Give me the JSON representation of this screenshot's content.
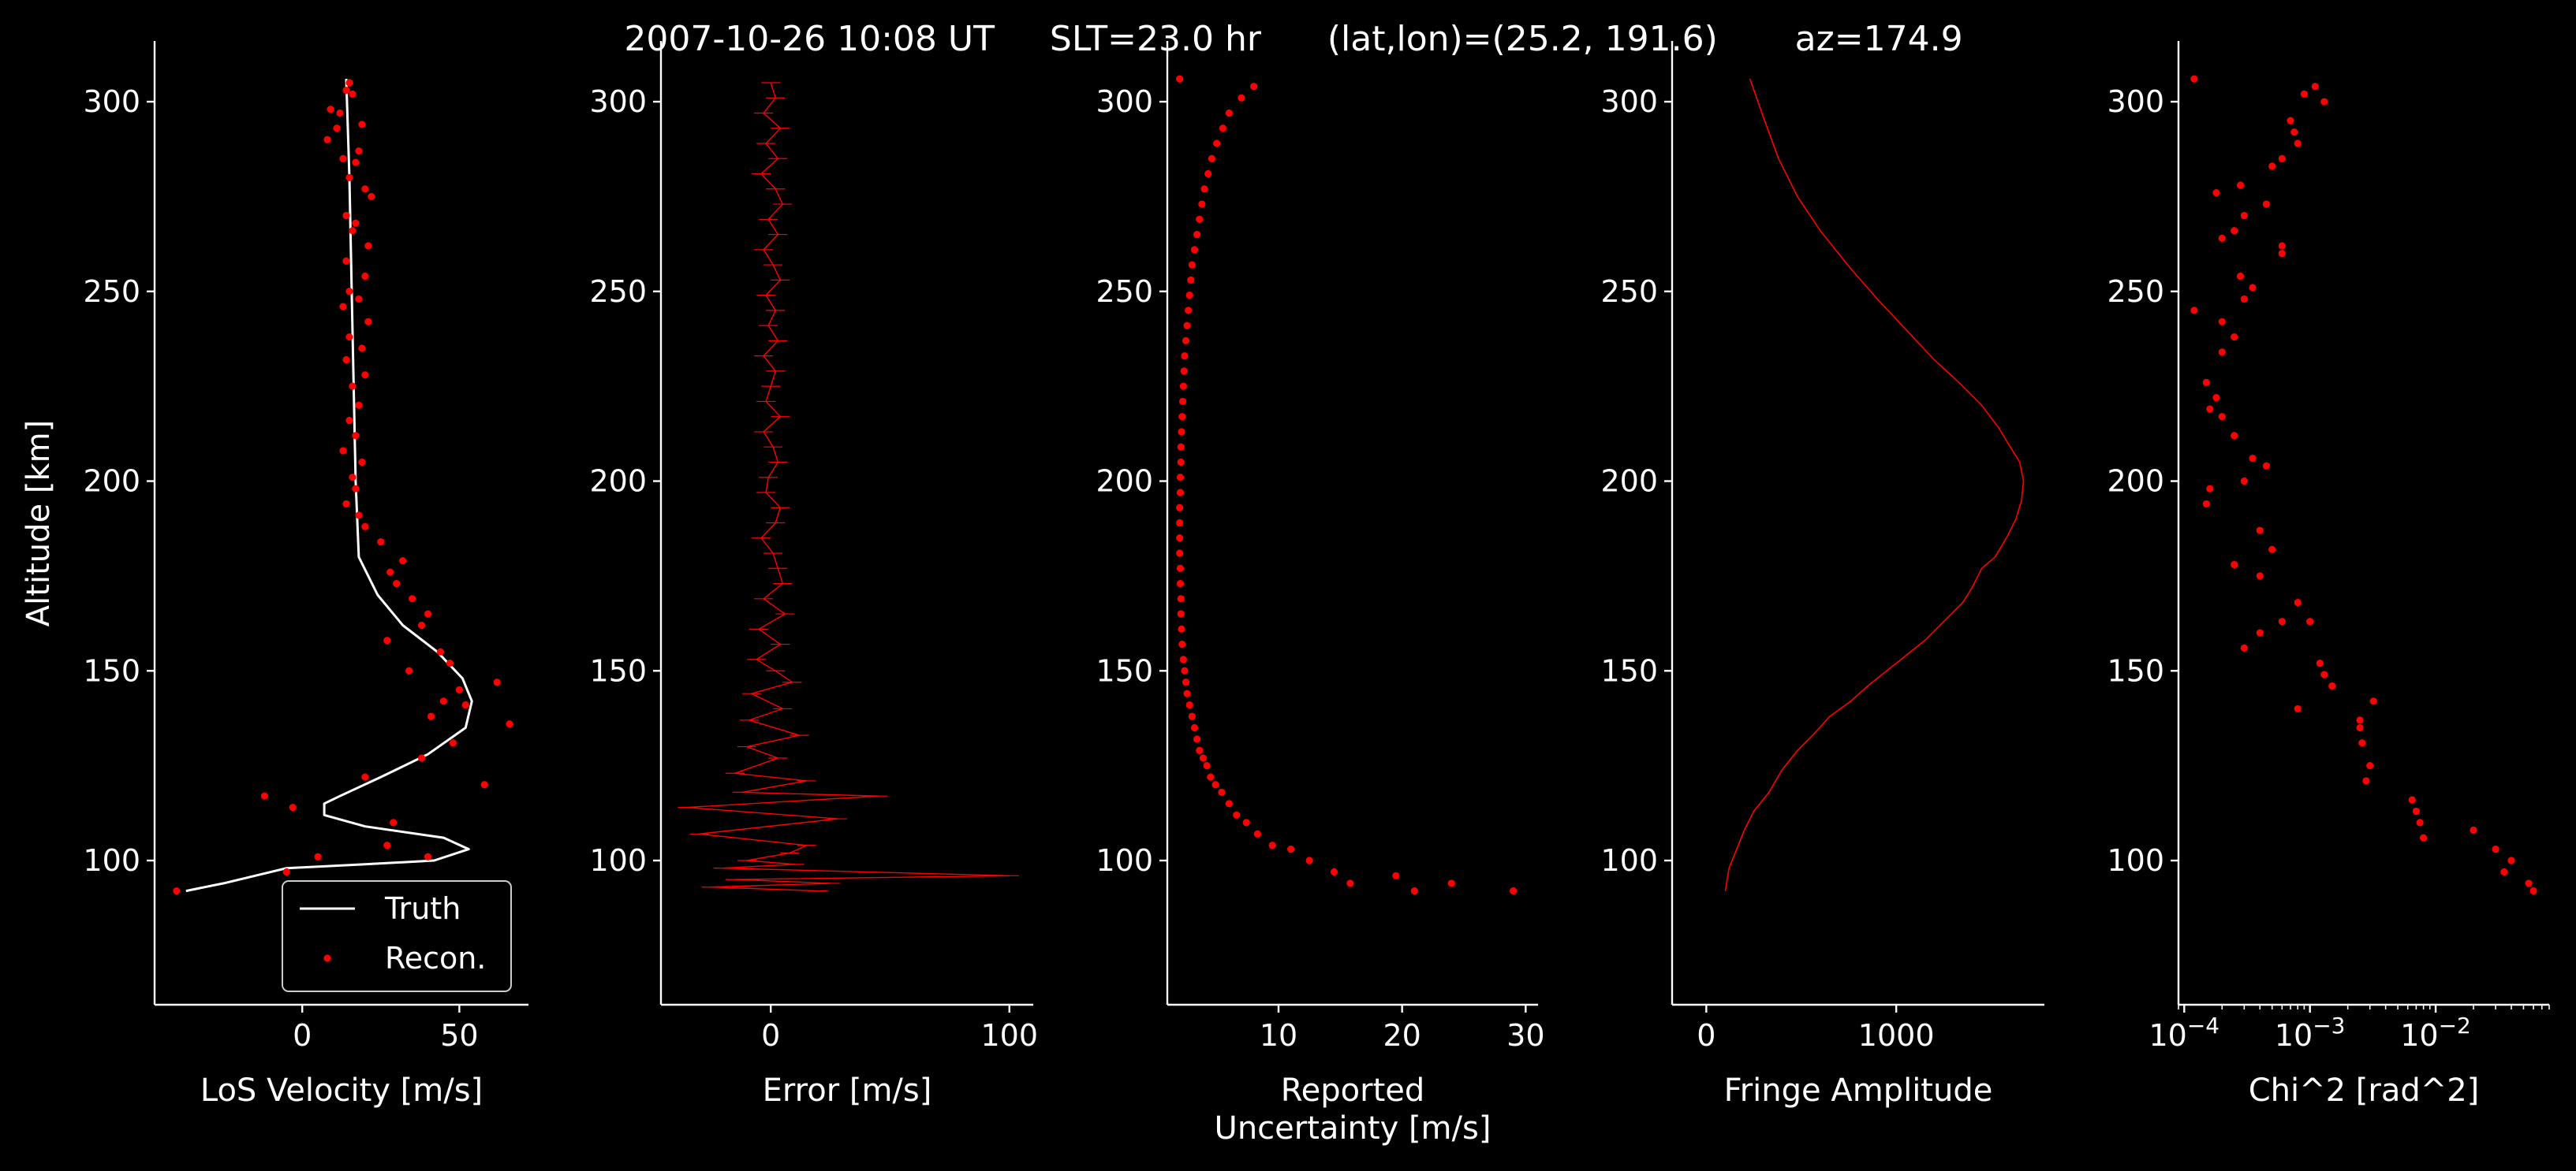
{
  "title": "2007-10-26 10:08 UT     SLT=23.0 hr      (lat,lon)=(25.2, 191.6)       az=174.9",
  "ylabel": "Altitude [km]",
  "chart_data": [
    {
      "type": "line",
      "name": "panel-los-velocity",
      "xlabel": "LoS Velocity [m/s]",
      "ylabel": "Altitude [km]",
      "xlim": [
        -47,
        72
      ],
      "ylim": [
        62,
        316
      ],
      "xticks": [
        0,
        50
      ],
      "yticks": [
        100,
        150,
        200,
        250,
        300
      ],
      "legend": {
        "placement": "lower-right",
        "entries": [
          "Truth",
          "Recon."
        ]
      },
      "series": [
        {
          "name": "Truth",
          "style": "line",
          "color": "#ffffff",
          "x": [
            14,
            15,
            16,
            17,
            18,
            24,
            32,
            43,
            51,
            54,
            52,
            40,
            25,
            12,
            7,
            7,
            20,
            45,
            53,
            42,
            20,
            -5,
            -25,
            -37
          ],
          "y": [
            306,
            280,
            240,
            200,
            180,
            170,
            162,
            155,
            148,
            142,
            135,
            128,
            122,
            117,
            115,
            112,
            109,
            106,
            103,
            100,
            99,
            98,
            94,
            92
          ]
        },
        {
          "name": "Recon.",
          "style": "marker",
          "color": "#ff0000",
          "x": [
            15,
            14,
            16,
            9,
            12,
            19,
            11,
            8,
            18,
            13,
            17,
            15,
            20,
            22,
            14,
            17,
            16,
            21,
            14,
            20,
            15,
            18,
            13,
            21,
            15,
            19,
            14,
            20,
            16,
            18,
            15,
            17,
            13,
            19,
            16,
            17,
            14,
            18,
            20,
            25,
            32,
            28,
            30,
            35,
            40,
            38,
            27,
            44,
            47,
            34,
            50,
            62,
            52,
            66,
            45,
            41,
            48,
            38,
            58,
            20,
            -12,
            -3,
            29,
            27,
            40,
            5,
            -5,
            -40
          ],
          "y": [
            305,
            303,
            302,
            298,
            297,
            294,
            293,
            290,
            287,
            285,
            284,
            280,
            277,
            275,
            270,
            268,
            266,
            262,
            258,
            254,
            250,
            248,
            246,
            242,
            238,
            235,
            232,
            228,
            225,
            220,
            216,
            212,
            208,
            205,
            201,
            198,
            194,
            191,
            188,
            184,
            179,
            176,
            173,
            169,
            165,
            162,
            158,
            155,
            152,
            150,
            145,
            147,
            141,
            136,
            142,
            138,
            131,
            127,
            120,
            122,
            117,
            114,
            110,
            104,
            101,
            101,
            97,
            92
          ]
        }
      ]
    },
    {
      "type": "line",
      "name": "panel-error",
      "xlabel": "Error [m/s]",
      "xlim": [
        -46,
        110
      ],
      "ylim": [
        62,
        316
      ],
      "xticks": [
        0,
        100
      ],
      "yticks": [
        100,
        150,
        200,
        250,
        300
      ],
      "series": [
        {
          "name": "",
          "style": "errorline",
          "color": "#ff0000",
          "x": [
            0,
            2,
            -3,
            4,
            -2,
            3,
            -4,
            2,
            5,
            -1,
            3,
            -3,
            1,
            4,
            -2,
            2,
            -1,
            3,
            -3,
            2,
            0,
            -2,
            4,
            -3,
            1,
            3,
            -1,
            -2,
            4,
            2,
            -4,
            1,
            3,
            5,
            -3,
            6,
            -5,
            4,
            -6,
            2,
            9,
            -8,
            5,
            -9,
            12,
            -10,
            3,
            -15,
            15,
            -12,
            45,
            -35,
            28,
            -30,
            15,
            8,
            -10,
            10,
            -20,
            100,
            -15,
            25,
            -25,
            20
          ],
          "y": [
            305,
            301,
            297,
            293,
            289,
            285,
            281,
            277,
            273,
            269,
            265,
            261,
            257,
            253,
            249,
            245,
            241,
            237,
            233,
            229,
            225,
            221,
            217,
            213,
            209,
            205,
            201,
            197,
            193,
            189,
            185,
            181,
            177,
            173,
            169,
            165,
            161,
            157,
            153,
            150,
            147,
            144,
            140,
            137,
            133,
            130,
            127,
            123,
            121,
            118,
            117,
            114,
            111,
            107,
            104,
            102,
            100,
            99,
            98,
            96,
            95,
            94,
            93,
            92
          ]
        }
      ]
    },
    {
      "type": "scatter",
      "name": "panel-uncertainty",
      "xlabel": "Reported\nUncertainty [m/s]",
      "xlim": [
        1,
        31
      ],
      "ylim": [
        62,
        316
      ],
      "xticks": [
        10,
        20,
        30
      ],
      "yticks": [
        100,
        150,
        200,
        250,
        300
      ],
      "series": [
        {
          "name": "",
          "style": "marker",
          "color": "#ff0000",
          "x": [
            2.0,
            8.0,
            7.0,
            6.0,
            5.5,
            5.0,
            4.6,
            4.3,
            4.0,
            3.8,
            3.6,
            3.4,
            3.2,
            3.0,
            2.9,
            2.8,
            2.7,
            2.6,
            2.5,
            2.4,
            2.35,
            2.3,
            2.25,
            2.2,
            2.15,
            2.1,
            2.1,
            2.05,
            2.05,
            2.0,
            2.0,
            2.0,
            2.0,
            2.05,
            2.05,
            2.1,
            2.1,
            2.15,
            2.2,
            2.3,
            2.4,
            2.5,
            2.6,
            2.8,
            3.0,
            3.2,
            3.4,
            3.6,
            3.9,
            4.2,
            4.5,
            4.9,
            5.4,
            6.0,
            6.6,
            7.4,
            8.3,
            9.5,
            11.0,
            12.5,
            14.5,
            15.8,
            21.0,
            19.5,
            24.0,
            29.0
          ],
          "y": [
            306,
            304,
            301,
            297,
            293,
            289,
            285,
            281,
            277,
            273,
            269,
            265,
            261,
            257,
            253,
            249,
            245,
            241,
            237,
            233,
            229,
            225,
            221,
            217,
            213,
            209,
            205,
            201,
            197,
            193,
            189,
            185,
            181,
            177,
            173,
            169,
            165,
            161,
            157,
            153,
            150,
            147,
            144,
            141,
            138,
            135,
            132,
            129,
            127,
            125,
            122,
            120,
            118,
            115,
            112,
            110,
            107,
            104,
            103,
            100,
            97,
            94,
            92,
            96,
            94,
            92
          ]
        }
      ]
    },
    {
      "type": "line",
      "name": "panel-fringe",
      "xlabel": "Fringe Amplitude",
      "xlim": [
        -180,
        1780
      ],
      "ylim": [
        62,
        316
      ],
      "xticks": [
        0,
        1000
      ],
      "yticks": [
        100,
        150,
        200,
        250,
        300
      ],
      "series": [
        {
          "name": "",
          "style": "line",
          "color": "#ff0000",
          "x": [
            230,
            300,
            380,
            480,
            600,
            760,
            900,
            1050,
            1200,
            1330,
            1450,
            1540,
            1600,
            1650,
            1670,
            1660,
            1630,
            1580,
            1520,
            1450,
            1400,
            1350,
            1250,
            1150,
            1050,
            950,
            850,
            760,
            650,
            560,
            480,
            400,
            330,
            250,
            200,
            160,
            120,
            100
          ],
          "y": [
            306,
            296,
            285,
            275,
            266,
            256,
            248,
            240,
            232,
            226,
            220,
            214,
            209,
            205,
            200,
            195,
            190,
            185,
            180,
            177,
            172,
            168,
            163,
            158,
            154,
            150,
            146,
            142,
            138,
            133,
            129,
            124,
            118,
            113,
            108,
            103,
            98,
            92
          ]
        }
      ]
    },
    {
      "type": "scatter",
      "name": "panel-chi2",
      "xlabel": "Chi^2 [rad^2]",
      "xscale": "log",
      "xlim": [
        9e-05,
        0.08
      ],
      "ylim": [
        62,
        316
      ],
      "xtick_labels": [
        "10^-4",
        "10^-3",
        "10^-2"
      ],
      "xticks": [
        0.0001,
        0.001,
        0.01
      ],
      "yticks": [
        100,
        150,
        200,
        250,
        300
      ],
      "series": [
        {
          "name": "",
          "style": "marker",
          "color": "#ff0000",
          "x": [
            0.00012,
            0.0011,
            0.0013,
            0.0009,
            0.0007,
            0.00075,
            0.0008,
            0.0006,
            0.0005,
            0.00045,
            0.00028,
            0.0003,
            0.00025,
            0.00018,
            0.0002,
            0.0006,
            0.0006,
            0.00028,
            0.00012,
            0.00035,
            0.0003,
            0.0002,
            0.00025,
            0.0002,
            0.00015,
            0.00018,
            0.00016,
            0.0002,
            0.00025,
            0.00035,
            0.00045,
            0.0003,
            0.00016,
            0.00015,
            0.0004,
            0.0005,
            0.0004,
            0.00025,
            0.0008,
            0.0006,
            0.0004,
            0.001,
            0.0003,
            0.0012,
            0.0013,
            0.0015,
            0.0032,
            0.0025,
            0.0008,
            0.0025,
            0.0026,
            0.003,
            0.0028,
            0.0065,
            0.007,
            0.0075,
            0.008,
            0.02,
            0.03,
            0.04,
            0.035,
            0.055,
            0.06
          ],
          "y": [
            306,
            304,
            300,
            302,
            295,
            292,
            289,
            285,
            283,
            273,
            278,
            270,
            266,
            276,
            264,
            262,
            260,
            254,
            245,
            251,
            248,
            242,
            238,
            234,
            226,
            222,
            219,
            217,
            212,
            206,
            204,
            200,
            198,
            194,
            187,
            182,
            175,
            178,
            168,
            163,
            160,
            163,
            156,
            152,
            149,
            146,
            142,
            137,
            140,
            135,
            131,
            125,
            121,
            116,
            113,
            110,
            106,
            108,
            103,
            100,
            97,
            94,
            92
          ]
        }
      ]
    }
  ]
}
